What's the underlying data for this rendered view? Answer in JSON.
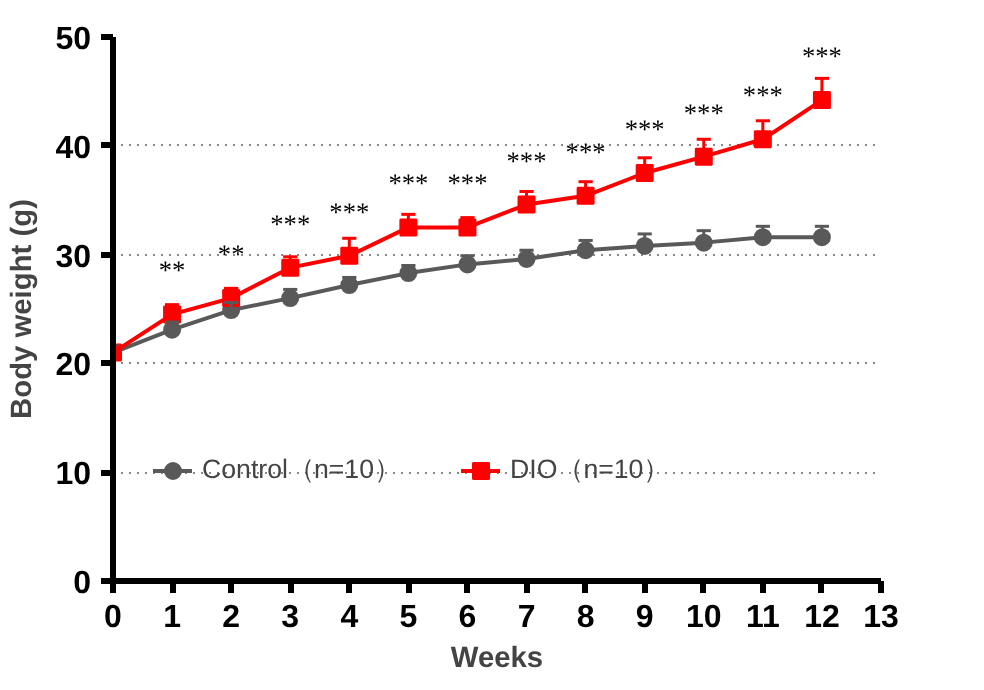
{
  "chart_data": {
    "type": "line",
    "xlabel": "Weeks",
    "ylabel": "Body weight (g)",
    "x": [
      0,
      1,
      2,
      3,
      4,
      5,
      6,
      7,
      8,
      9,
      10,
      11,
      12
    ],
    "xlim": [
      0,
      13
    ],
    "xticks": [
      0,
      1,
      2,
      3,
      4,
      5,
      6,
      7,
      8,
      9,
      10,
      11,
      12,
      13
    ],
    "ylim": [
      0,
      50
    ],
    "yticks": [
      0,
      10,
      20,
      30,
      40,
      50
    ],
    "grid": "y",
    "legend": "bottom",
    "series": [
      {
        "name": "Control（n=10）",
        "color": "#595959",
        "marker": "circle",
        "values": [
          21.0,
          23.1,
          24.9,
          26.0,
          27.2,
          28.3,
          29.1,
          29.6,
          30.4,
          30.8,
          31.1,
          31.6,
          31.6
        ],
        "errors": [
          [
            21.0,
            21.6
          ],
          [
            23.1,
            23.8
          ],
          [
            24.9,
            25.6
          ],
          [
            26.0,
            26.8
          ],
          [
            27.2,
            27.9
          ],
          [
            28.3,
            29.0
          ],
          [
            29.1,
            29.9
          ],
          [
            29.6,
            30.4
          ],
          [
            30.4,
            31.3
          ],
          [
            30.8,
            31.9
          ],
          [
            31.1,
            32.2
          ],
          [
            31.6,
            32.6
          ],
          [
            31.6,
            32.6
          ]
        ]
      },
      {
        "name": "DIO（n=10）",
        "color": "#ff0000",
        "marker": "square",
        "values": [
          21.0,
          24.5,
          26.0,
          28.8,
          29.9,
          32.5,
          32.5,
          34.6,
          35.4,
          37.5,
          39.0,
          40.6,
          44.2
        ],
        "errors": [
          [
            21.0,
            21.5
          ],
          [
            24.5,
            25.4
          ],
          [
            26.0,
            26.9
          ],
          [
            28.8,
            29.8
          ],
          [
            29.9,
            31.5
          ],
          [
            32.5,
            33.7
          ],
          [
            32.5,
            33.4
          ],
          [
            34.6,
            35.8
          ],
          [
            35.4,
            36.7
          ],
          [
            37.5,
            38.9
          ],
          [
            39.0,
            40.6
          ],
          [
            40.6,
            42.3
          ],
          [
            44.2,
            46.2
          ]
        ]
      }
    ],
    "annotations": [
      {
        "text": "**",
        "x": 1,
        "y": 24.5
      },
      {
        "text": "**",
        "x": 2,
        "y": 26.0
      },
      {
        "text": "***",
        "x": 3,
        "y": 28.8
      },
      {
        "text": "***",
        "x": 4,
        "y": 29.9
      },
      {
        "text": "***",
        "x": 5,
        "y": 32.5
      },
      {
        "text": "***",
        "x": 6,
        "y": 32.5
      },
      {
        "text": "***",
        "x": 7,
        "y": 34.6
      },
      {
        "text": "***",
        "x": 8,
        "y": 35.4
      },
      {
        "text": "***",
        "x": 9,
        "y": 37.5
      },
      {
        "text": "***",
        "x": 10,
        "y": 39.0
      },
      {
        "text": "***",
        "x": 11,
        "y": 40.6
      },
      {
        "text": "***",
        "x": 12,
        "y": 44.2
      }
    ]
  }
}
